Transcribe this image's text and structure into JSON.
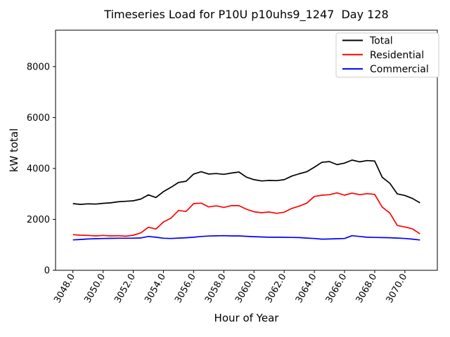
{
  "chart_data": {
    "type": "line",
    "title": "Timeseries Load for P10U p10uhs9_1247  Day 128",
    "xlabel": "Hour of Year",
    "ylabel": "kW total",
    "xlim": [
      3046.85,
      3072.15
    ],
    "ylim": [
      0,
      9430
    ],
    "grid": false,
    "legend_position": "upper right",
    "x_ticks": [
      3048,
      3050,
      3052,
      3054,
      3056,
      3058,
      3060,
      3062,
      3064,
      3066,
      3068,
      3070
    ],
    "x_tick_labels": [
      "3048.0",
      "3050.0",
      "3052.0",
      "3054.0",
      "3056.0",
      "3058.0",
      "3060.0",
      "3062.0",
      "3064.0",
      "3066.0",
      "3068.0",
      "3070.0"
    ],
    "x_tick_rotation_deg": 60,
    "y_ticks": [
      0,
      2000,
      4000,
      6000,
      8000
    ],
    "y_tick_labels": [
      "0",
      "2000",
      "4000",
      "6000",
      "8000"
    ],
    "x": [
      3048.0,
      3048.5,
      3049.0,
      3049.5,
      3050.0,
      3050.5,
      3051.0,
      3051.5,
      3052.0,
      3052.5,
      3053.0,
      3053.5,
      3054.0,
      3054.5,
      3055.0,
      3055.5,
      3056.0,
      3056.5,
      3057.0,
      3057.5,
      3058.0,
      3058.5,
      3059.0,
      3059.5,
      3060.0,
      3060.5,
      3061.0,
      3061.5,
      3062.0,
      3062.5,
      3063.0,
      3063.5,
      3064.0,
      3064.5,
      3065.0,
      3065.5,
      3066.0,
      3066.5,
      3067.0,
      3067.5,
      3068.0,
      3068.5,
      3069.0,
      3069.5,
      3070.0,
      3070.5,
      3071.0
    ],
    "series": [
      {
        "name": "Total",
        "color": "#000000",
        "values": [
          2620,
          2590,
          2610,
          2600,
          2630,
          2650,
          2690,
          2710,
          2730,
          2800,
          2960,
          2860,
          3090,
          3260,
          3450,
          3500,
          3780,
          3870,
          3780,
          3800,
          3770,
          3820,
          3860,
          3660,
          3560,
          3510,
          3530,
          3520,
          3560,
          3700,
          3790,
          3870,
          4050,
          4240,
          4270,
          4150,
          4210,
          4330,
          4260,
          4310,
          4290,
          3650,
          3420,
          3000,
          2940,
          2820,
          2650
        ]
      },
      {
        "name": "Residential",
        "color": "#ff0000",
        "values": [
          1400,
          1380,
          1370,
          1350,
          1370,
          1350,
          1360,
          1340,
          1380,
          1470,
          1690,
          1620,
          1900,
          2050,
          2350,
          2310,
          2620,
          2640,
          2490,
          2530,
          2470,
          2540,
          2540,
          2400,
          2300,
          2260,
          2290,
          2240,
          2280,
          2430,
          2520,
          2640,
          2900,
          2950,
          2970,
          3040,
          2950,
          3030,
          2970,
          3010,
          2980,
          2480,
          2250,
          1760,
          1700,
          1630,
          1430
        ]
      },
      {
        "name": "Commercial",
        "color": "#0000ff",
        "values": [
          1195,
          1210,
          1230,
          1240,
          1250,
          1255,
          1260,
          1260,
          1260,
          1270,
          1330,
          1300,
          1260,
          1250,
          1265,
          1280,
          1300,
          1330,
          1345,
          1355,
          1360,
          1350,
          1350,
          1335,
          1320,
          1310,
          1300,
          1300,
          1295,
          1290,
          1285,
          1265,
          1250,
          1225,
          1230,
          1240,
          1250,
          1360,
          1330,
          1300,
          1290,
          1285,
          1280,
          1265,
          1250,
          1225,
          1190
        ]
      }
    ]
  }
}
